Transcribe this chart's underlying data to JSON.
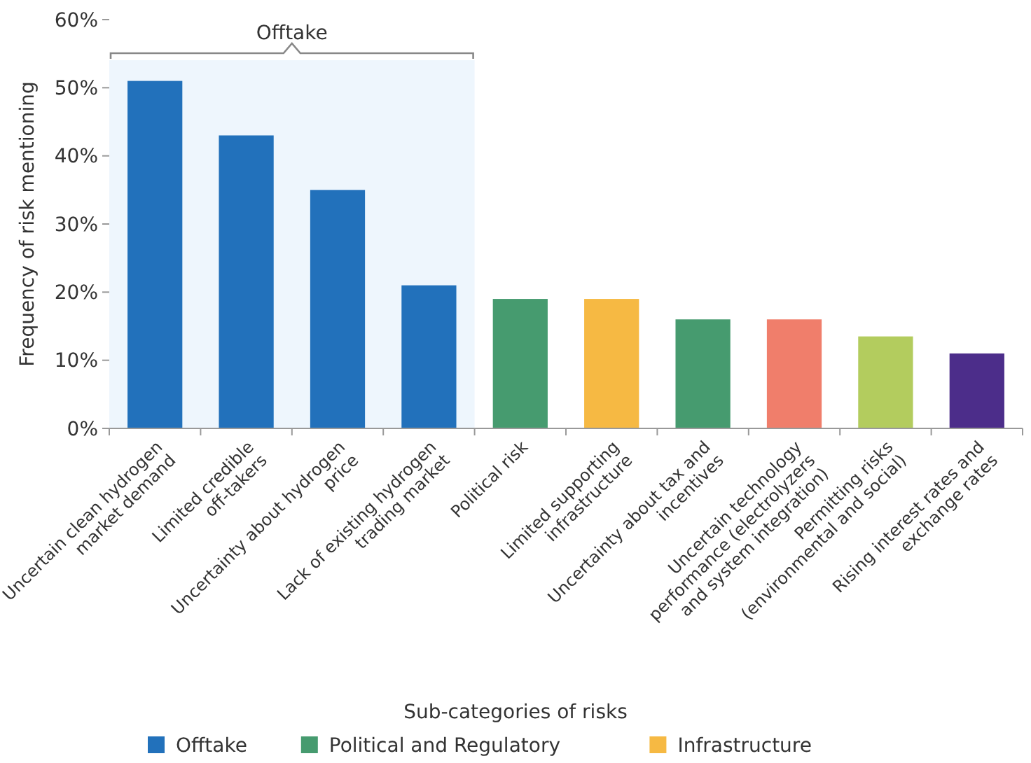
{
  "chart_data": {
    "type": "bar",
    "stacked": true,
    "xlabel": "Sub-categories of risks",
    "ylabel": "Frequency of risk mentioning",
    "categories": [
      "Uncertain clean hydrogen market demand",
      "Limited credible off-takers",
      "Uncertainty about hydrogen price",
      "Lack of existing hydrogen trading market",
      "Political risk",
      "Limited supporting infrastructure",
      "Uncertainty about tax and incentives",
      "Uncertain technology performance (electrolyzers and system integration)",
      "Permitting risks (environmental and social)",
      "Rising interest rates and exchange rates"
    ],
    "series": [
      {
        "name": "Offtake",
        "color": "#2271bb",
        "values": [
          51,
          43,
          35,
          21,
          null,
          null,
          null,
          null,
          null,
          null
        ]
      },
      {
        "name": "Political and Regulatory",
        "color": "#469b6f",
        "values": [
          null,
          null,
          null,
          null,
          19,
          null,
          16,
          null,
          null,
          null
        ]
      },
      {
        "name": "Infrastructure",
        "color": "#f6b943",
        "values": [
          null,
          null,
          null,
          null,
          null,
          19,
          null,
          null,
          null,
          null
        ]
      },
      {
        "color": "#f07e6b",
        "values": [
          null,
          null,
          null,
          null,
          null,
          null,
          null,
          16,
          null,
          null
        ]
      },
      {
        "color": "#b3cc5e",
        "values": [
          null,
          null,
          null,
          null,
          null,
          null,
          null,
          null,
          13.5,
          null
        ]
      },
      {
        "color": "#4c2d8a",
        "values": [
          null,
          null,
          null,
          null,
          null,
          null,
          null,
          null,
          null,
          11
        ]
      }
    ],
    "ylim": [
      0,
      60
    ],
    "yticks": [
      {
        "value": 0,
        "label": "0%"
      },
      {
        "value": 10,
        "label": "10%"
      },
      {
        "value": 20,
        "label": "20%"
      },
      {
        "value": 30,
        "label": "30%"
      },
      {
        "value": 40,
        "label": "40%"
      },
      {
        "value": 50,
        "label": "50%"
      },
      {
        "value": 60,
        "label": "60%"
      }
    ],
    "annotations": [
      "Offtake"
    ],
    "grid": false,
    "legend": "bottom"
  }
}
